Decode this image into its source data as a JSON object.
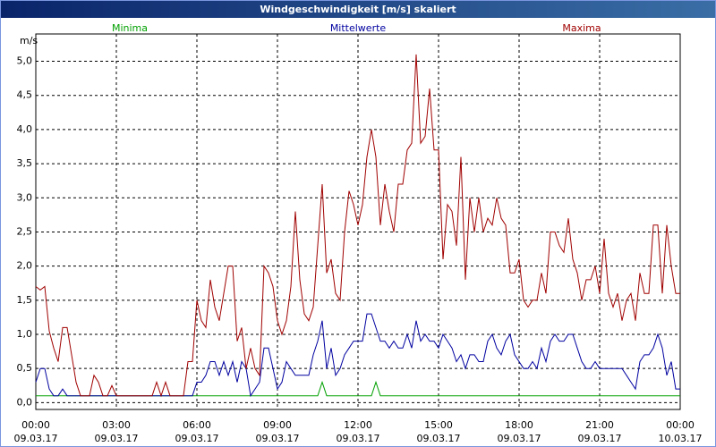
{
  "chart_data": {
    "type": "line",
    "title": "Windgeschwindigkeit [m/s] skaliert",
    "y_label": "m/s",
    "x": [
      0,
      10,
      20,
      30,
      40,
      50,
      60,
      70,
      80,
      90,
      100,
      110,
      120,
      130,
      140,
      150,
      160,
      170,
      180,
      190,
      200,
      210,
      220,
      230,
      240,
      250,
      260,
      270,
      280,
      290,
      300,
      310,
      320,
      330,
      340,
      350,
      360,
      370,
      380,
      390,
      400,
      410,
      420,
      430,
      440,
      450,
      460,
      470,
      480,
      490,
      500,
      510,
      520,
      530,
      540,
      550,
      560,
      570,
      580,
      590,
      600,
      610,
      620,
      630,
      640,
      650,
      660,
      670,
      680,
      690,
      700,
      710,
      720,
      730,
      740,
      750,
      760,
      770,
      780,
      790,
      800,
      810,
      820,
      830,
      840,
      850,
      860,
      870,
      880,
      890,
      900,
      910,
      920,
      930,
      940,
      950,
      960,
      970,
      980,
      990,
      1000,
      1010,
      1020,
      1030,
      1040,
      1050,
      1060,
      1070,
      1080,
      1090,
      1100,
      1110,
      1120,
      1130,
      1140,
      1150,
      1160,
      1170,
      1180,
      1190,
      1200,
      1210,
      1220,
      1230,
      1240,
      1250,
      1260,
      1270,
      1280,
      1290,
      1300,
      1310,
      1320,
      1330,
      1340,
      1350,
      1360,
      1370,
      1380,
      1390,
      1400,
      1410,
      1420,
      1430,
      1440
    ],
    "series": [
      {
        "name": "Minima",
        "color": "#00a000",
        "values": [
          0.1,
          0.1,
          0.1,
          0.1,
          0.1,
          0.1,
          0.1,
          0.1,
          0.1,
          0.1,
          0.1,
          0.1,
          0.1,
          0.1,
          0.1,
          0.1,
          0.1,
          0.1,
          0.1,
          0.1,
          0.1,
          0.1,
          0.1,
          0.1,
          0.1,
          0.1,
          0.1,
          0.1,
          0.1,
          0.1,
          0.1,
          0.1,
          0.1,
          0.1,
          0.1,
          0.1,
          0.1,
          0.1,
          0.1,
          0.1,
          0.1,
          0.1,
          0.1,
          0.1,
          0.1,
          0.1,
          0.1,
          0.1,
          0.1,
          0.1,
          0.1,
          0.1,
          0.1,
          0.1,
          0.1,
          0.1,
          0.1,
          0.1,
          0.1,
          0.1,
          0.1,
          0.1,
          0.1,
          0.1,
          0.3,
          0.1,
          0.1,
          0.1,
          0.1,
          0.1,
          0.1,
          0.1,
          0.1,
          0.1,
          0.1,
          0.1,
          0.3,
          0.1,
          0.1,
          0.1,
          0.1,
          0.1,
          0.1,
          0.1,
          0.1,
          0.1,
          0.1,
          0.1,
          0.1,
          0.1,
          0.1,
          0.1,
          0.1,
          0.1,
          0.1,
          0.1,
          0.1,
          0.1,
          0.1,
          0.1,
          0.1,
          0.1,
          0.1,
          0.1,
          0.1,
          0.1,
          0.1,
          0.1,
          0.1,
          0.1,
          0.1,
          0.1,
          0.1,
          0.1,
          0.1,
          0.1,
          0.1,
          0.1,
          0.1,
          0.1,
          0.1,
          0.1,
          0.1,
          0.1,
          0.1,
          0.1,
          0.1,
          0.1,
          0.1,
          0.1,
          0.1,
          0.1,
          0.1,
          0.1,
          0.1,
          0.1,
          0.1,
          0.1,
          0.1,
          0.1,
          0.1,
          0.1,
          0.1,
          0.1,
          0.1
        ]
      },
      {
        "name": "Mittelwerte",
        "color": "#0000a0",
        "values": [
          0.3,
          0.5,
          0.5,
          0.2,
          0.1,
          0.1,
          0.2,
          0.1,
          0.1,
          0.1,
          0.1,
          0.1,
          0.1,
          0.1,
          0.1,
          0.1,
          0.1,
          0.1,
          0.1,
          0.1,
          0.1,
          0.1,
          0.1,
          0.1,
          0.1,
          0.1,
          0.1,
          0.1,
          0.1,
          0.1,
          0.1,
          0.1,
          0.1,
          0.1,
          0.1,
          0.1,
          0.3,
          0.3,
          0.4,
          0.6,
          0.6,
          0.4,
          0.6,
          0.4,
          0.6,
          0.3,
          0.6,
          0.5,
          0.1,
          0.2,
          0.3,
          0.8,
          0.8,
          0.5,
          0.2,
          0.3,
          0.6,
          0.5,
          0.4,
          0.4,
          0.4,
          0.4,
          0.7,
          0.9,
          1.2,
          0.5,
          0.8,
          0.4,
          0.5,
          0.7,
          0.8,
          0.9,
          0.9,
          0.9,
          1.3,
          1.3,
          1.1,
          0.9,
          0.9,
          0.8,
          0.9,
          0.8,
          0.8,
          1.0,
          0.8,
          1.2,
          0.9,
          1.0,
          0.9,
          0.9,
          0.8,
          1.0,
          0.9,
          0.8,
          0.6,
          0.7,
          0.5,
          0.7,
          0.7,
          0.6,
          0.6,
          0.9,
          1.0,
          0.8,
          0.7,
          0.9,
          1.0,
          0.7,
          0.6,
          0.5,
          0.5,
          0.6,
          0.5,
          0.8,
          0.6,
          0.9,
          1.0,
          0.9,
          0.9,
          1.0,
          1.0,
          0.8,
          0.6,
          0.5,
          0.5,
          0.6,
          0.5,
          0.5,
          0.5,
          0.5,
          0.5,
          0.5,
          0.4,
          0.3,
          0.2,
          0.6,
          0.7,
          0.7,
          0.8,
          1.0,
          0.8,
          0.4,
          0.6,
          0.2,
          0.2
        ]
      },
      {
        "name": "Maxima",
        "color": "#a00000",
        "values": [
          1.7,
          1.65,
          1.7,
          1.05,
          0.8,
          0.6,
          1.1,
          1.1,
          0.7,
          0.3,
          0.1,
          0.1,
          0.1,
          0.4,
          0.3,
          0.1,
          0.1,
          0.25,
          0.1,
          0.1,
          0.1,
          0.1,
          0.1,
          0.1,
          0.1,
          0.1,
          0.1,
          0.3,
          0.1,
          0.3,
          0.1,
          0.1,
          0.1,
          0.1,
          0.6,
          0.6,
          1.5,
          1.2,
          1.1,
          1.8,
          1.4,
          1.2,
          1.6,
          2.0,
          2.0,
          0.9,
          1.1,
          0.5,
          0.8,
          0.5,
          0.4,
          2.0,
          1.9,
          1.7,
          1.2,
          1.0,
          1.2,
          1.7,
          2.8,
          1.8,
          1.3,
          1.2,
          1.4,
          2.3,
          3.2,
          1.9,
          2.1,
          1.6,
          1.5,
          2.5,
          3.1,
          2.9,
          2.6,
          2.9,
          3.6,
          4.0,
          3.6,
          2.6,
          3.2,
          2.8,
          2.5,
          3.2,
          3.2,
          3.7,
          3.8,
          5.1,
          3.8,
          3.9,
          4.6,
          3.7,
          3.7,
          2.1,
          2.9,
          2.8,
          2.3,
          3.6,
          1.8,
          3.0,
          2.5,
          3.0,
          2.5,
          2.7,
          2.6,
          3.0,
          2.7,
          2.6,
          1.9,
          1.9,
          2.1,
          1.5,
          1.4,
          1.5,
          1.5,
          1.9,
          1.6,
          2.5,
          2.5,
          2.3,
          2.2,
          2.7,
          2.1,
          1.9,
          1.5,
          1.8,
          1.8,
          2.0,
          1.6,
          2.4,
          1.6,
          1.4,
          1.6,
          1.2,
          1.5,
          1.6,
          1.2,
          1.9,
          1.6,
          1.6,
          2.6,
          2.6,
          1.6,
          2.6,
          2.0,
          1.6,
          1.6
        ]
      }
    ],
    "xlim": [
      0,
      1440
    ],
    "xticks": [
      {
        "value": 0,
        "label": "00:00\n09.03.17"
      },
      {
        "value": 180,
        "label": "03:00\n09.03.17"
      },
      {
        "value": 360,
        "label": "06:00\n09.03.17"
      },
      {
        "value": 540,
        "label": "09:00\n09.03.17"
      },
      {
        "value": 720,
        "label": "12:00\n09.03.17"
      },
      {
        "value": 900,
        "label": "15:00\n09.03.17"
      },
      {
        "value": 1080,
        "label": "18:00\n09.03.17"
      },
      {
        "value": 1260,
        "label": "21:00\n09.03.17"
      },
      {
        "value": 1440,
        "label": "00:00\n10.03.17"
      }
    ],
    "ylim": [
      -0.1,
      5.4
    ],
    "yticks": [
      {
        "value": 0,
        "label": "0,0"
      },
      {
        "value": 0.5,
        "label": "0,5"
      },
      {
        "value": 1,
        "label": "1,0"
      },
      {
        "value": 1.5,
        "label": "1,5"
      },
      {
        "value": 2,
        "label": "2,0"
      },
      {
        "value": 2.5,
        "label": "2,5"
      },
      {
        "value": 3,
        "label": "3,0"
      },
      {
        "value": 3.5,
        "label": "3,5"
      },
      {
        "value": 4,
        "label": "4,0"
      },
      {
        "value": 4.5,
        "label": "4,5"
      },
      {
        "value": 5,
        "label": "5,0"
      }
    ],
    "grid": true
  }
}
